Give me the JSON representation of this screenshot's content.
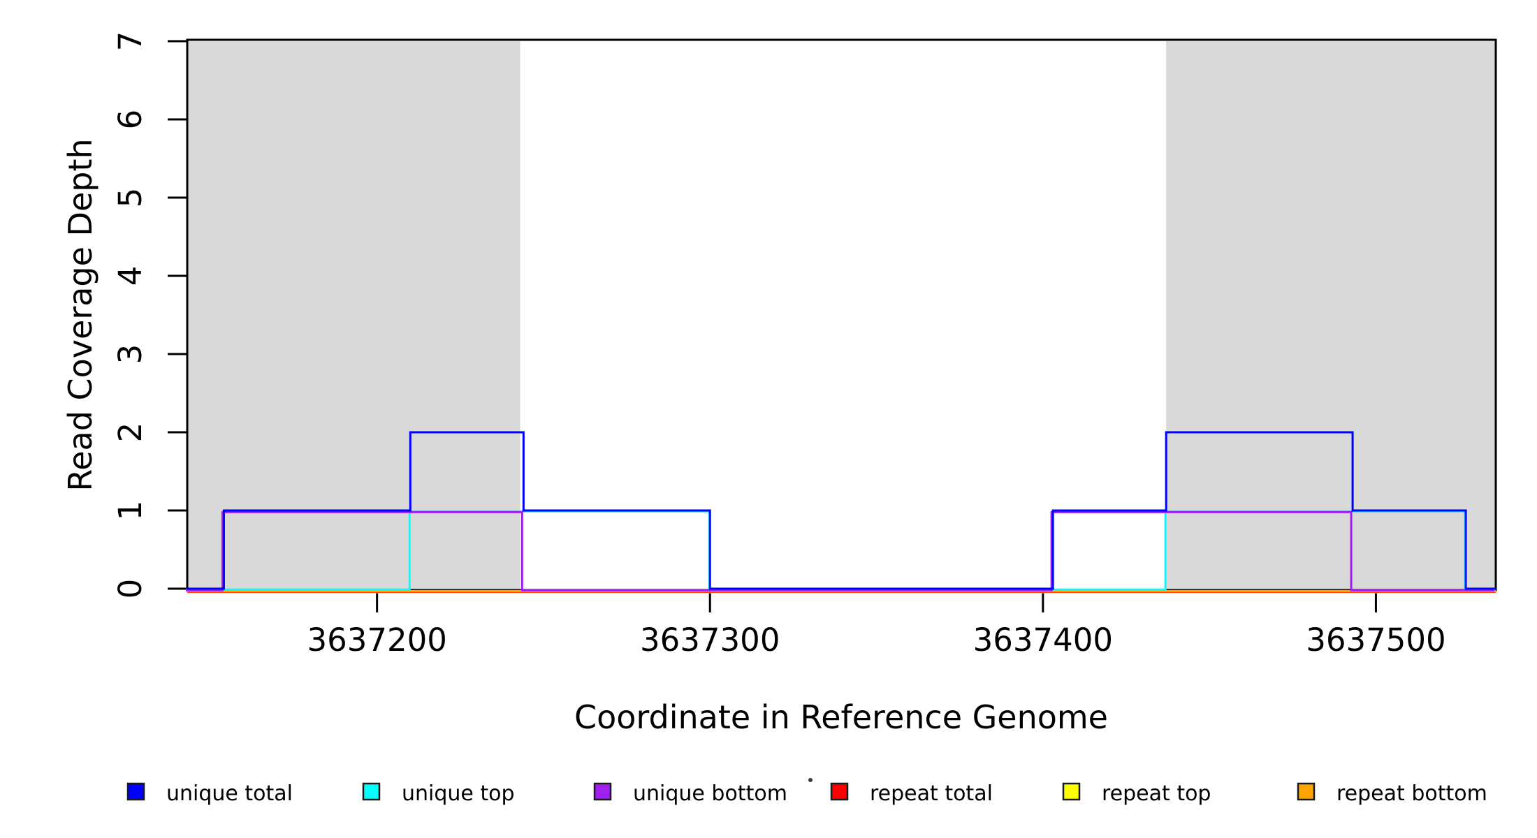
{
  "figure": {
    "xlabel": "Coordinate in Reference Genome",
    "ylabel": "Read Coverage Depth"
  },
  "chart_data": {
    "type": "line",
    "subtype": "step-coverage",
    "title": "",
    "xlabel": "Coordinate in Reference Genome",
    "ylabel": "Read Coverage Depth",
    "xlim": [
      3637143,
      3637536
    ],
    "ylim": [
      0,
      7
    ],
    "x_ticks": [
      3637200,
      3637300,
      3637400,
      3637500
    ],
    "y_ticks": [
      0,
      1,
      2,
      3,
      4,
      5,
      6,
      7
    ],
    "grid": false,
    "legend_position": "bottom",
    "shaded_regions": [
      {
        "name": "repeat-region-left",
        "from": 3637143,
        "to": 3637243,
        "color": "#D9D9D9"
      },
      {
        "name": "repeat-region-right",
        "from": 3637437,
        "to": 3637536,
        "color": "#D9D9D9"
      }
    ],
    "series": [
      {
        "name": "unique total",
        "color": "#0000FF",
        "start_value": 0,
        "steps": [
          [
            3637154,
            1
          ],
          [
            3637210,
            2
          ],
          [
            3637244,
            1
          ],
          [
            3637300,
            0
          ],
          [
            3637403,
            1
          ],
          [
            3637437,
            2
          ],
          [
            3637493,
            1
          ],
          [
            3637527,
            0
          ]
        ]
      },
      {
        "name": "unique top",
        "color": "#00FFFF",
        "start_value": 0,
        "steps": [
          [
            3637210,
            1
          ],
          [
            3637300,
            0
          ],
          [
            3637437,
            1
          ],
          [
            3637527,
            0
          ]
        ]
      },
      {
        "name": "unique bottom",
        "color": "#A020F0",
        "start_value": 0,
        "steps": [
          [
            3637154,
            1
          ],
          [
            3637244,
            0
          ],
          [
            3637403,
            1
          ],
          [
            3637493,
            0
          ]
        ]
      },
      {
        "name": "repeat total",
        "color": "#FF0000",
        "start_value": 0,
        "steps": []
      },
      {
        "name": "repeat top",
        "color": "#FFFF00",
        "start_value": 0,
        "steps": []
      },
      {
        "name": "repeat bottom",
        "color": "#FFA500",
        "start_value": 0,
        "steps": []
      }
    ]
  },
  "legend": {
    "items": [
      {
        "label": "unique total",
        "color": "#0000FF"
      },
      {
        "label": "unique top",
        "color": "#00FFFF"
      },
      {
        "label": "unique bottom",
        "color": "#A020F0"
      },
      {
        "label": "repeat total",
        "color": "#FF0000"
      },
      {
        "label": "repeat top",
        "color": "#FFFF00"
      },
      {
        "label": "repeat bottom",
        "color": "#FFA500"
      }
    ]
  }
}
